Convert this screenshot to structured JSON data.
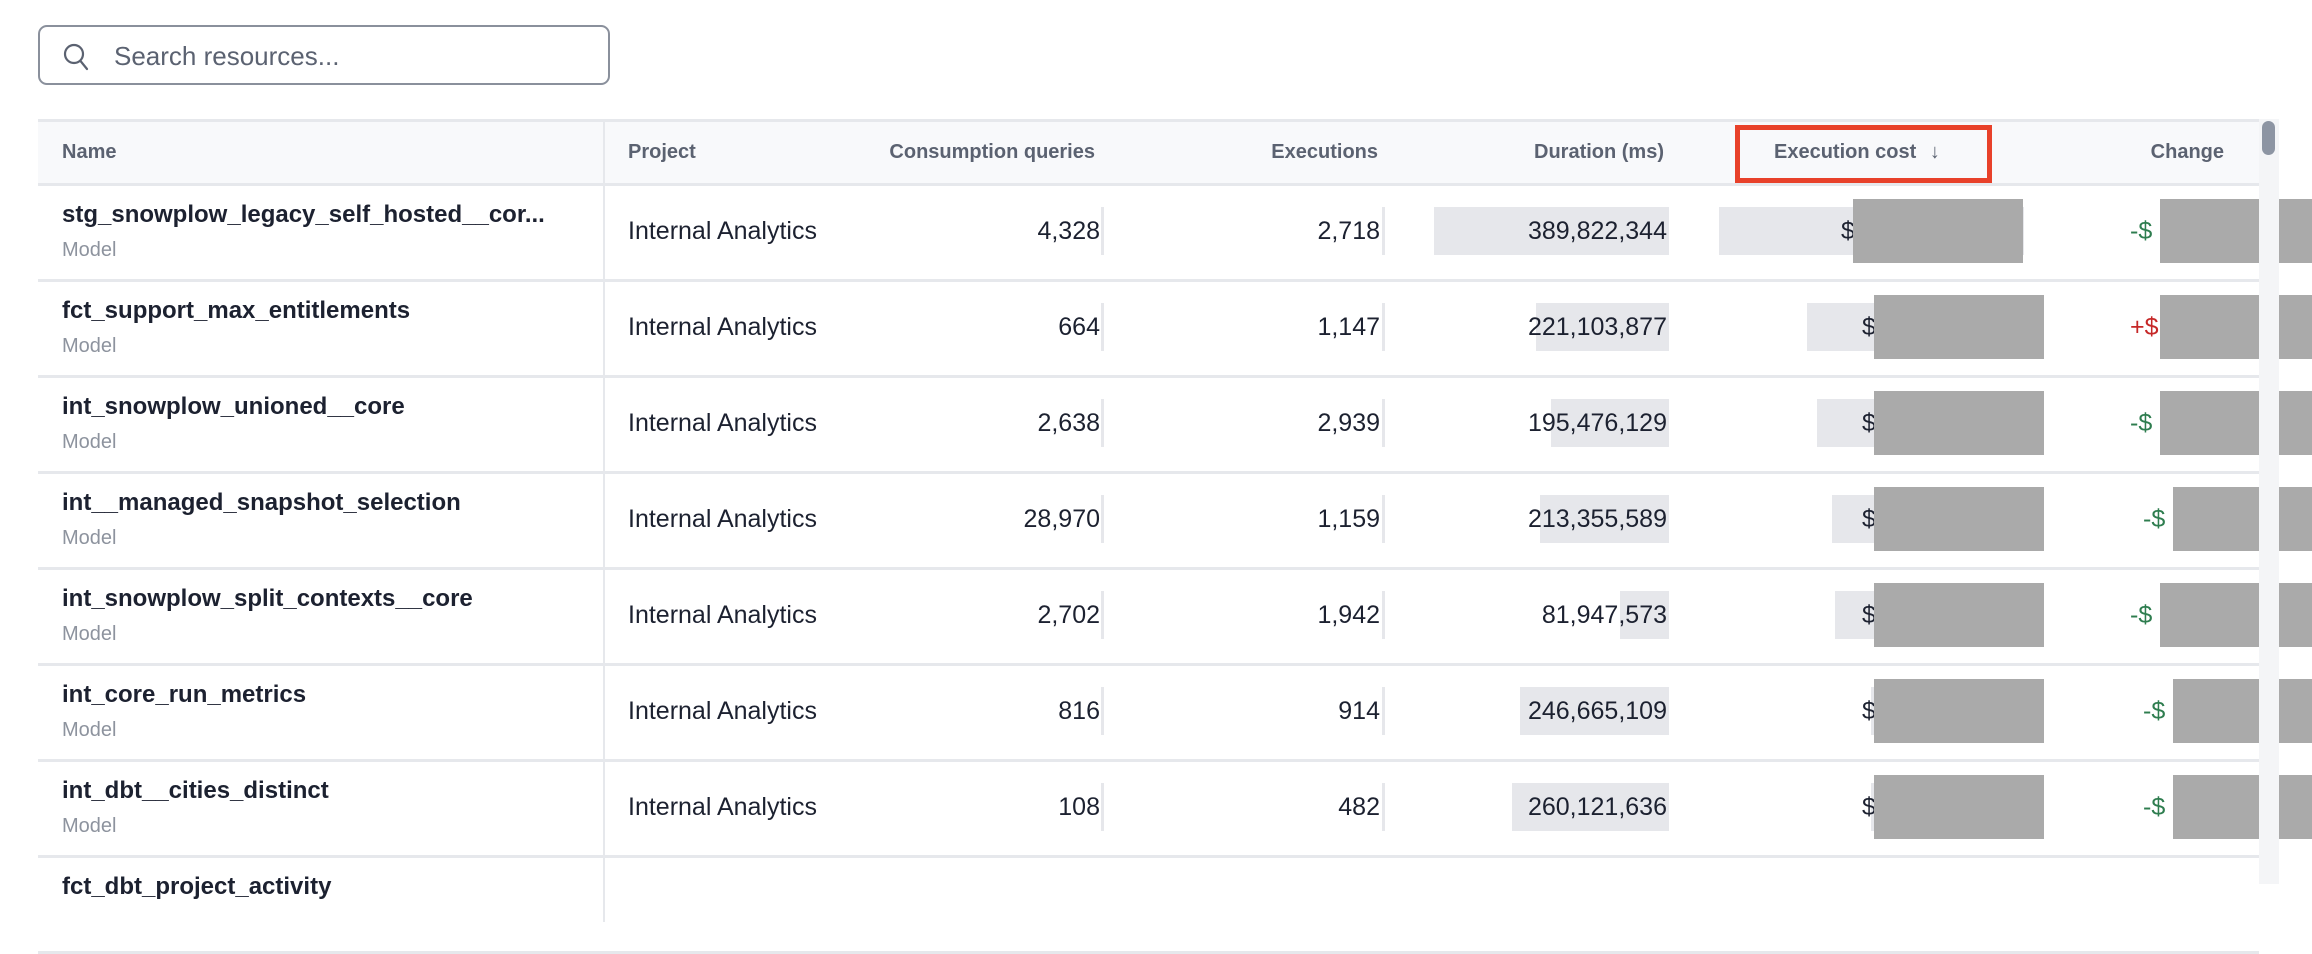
{
  "search": {
    "placeholder": "Search resources...",
    "value": "",
    "icon": "search-icon"
  },
  "table": {
    "columns": [
      "Name",
      "Project",
      "Consumption queries",
      "Executions",
      "Duration (ms)",
      "Execution cost",
      "Change"
    ],
    "sort": {
      "column": "Execution cost",
      "direction": "descending",
      "indicator": "↓"
    },
    "highlight_color": "#e8412a",
    "positive_change_color": "#2e7d4f",
    "negative_change_color": "#c62828",
    "rows": [
      {
        "name": "stg_snowplow_legacy_self_hosted__cor...",
        "type": "Model",
        "project": "Internal Analytics",
        "consumption_queries": "4,328",
        "executions": "2,718",
        "duration_ms": "389,822,344",
        "duration_value": 389822344,
        "cost_prefix": "$",
        "cost_fill": 1.0,
        "change_prefix": "-$"
      },
      {
        "name": "fct_support_max_entitlements",
        "type": "Model",
        "project": "Internal Analytics",
        "consumption_queries": "664",
        "executions": "1,147",
        "duration_ms": "221,103,877",
        "duration_value": 221103877,
        "cost_prefix": "$",
        "cost_fill": 0.71,
        "change_prefix": "+$"
      },
      {
        "name": "int_snowplow_unioned__core",
        "type": "Model",
        "project": "Internal Analytics",
        "consumption_queries": "2,638",
        "executions": "2,939",
        "duration_ms": "195,476,129",
        "duration_value": 195476129,
        "cost_prefix": "$",
        "cost_fill": 0.68,
        "change_prefix": "-$"
      },
      {
        "name": "int__managed_snapshot_selection",
        "type": "Model",
        "project": "Internal Analytics",
        "consumption_queries": "28,970",
        "executions": "1,159",
        "duration_ms": "213,355,589",
        "duration_value": 213355589,
        "cost_prefix": "$",
        "cost_fill": 0.63,
        "change_prefix": "-$"
      },
      {
        "name": "int_snowplow_split_contexts__core",
        "type": "Model",
        "project": "Internal Analytics",
        "consumption_queries": "2,702",
        "executions": "1,942",
        "duration_ms": "81,947,573",
        "duration_value": 81947573,
        "cost_prefix": "$",
        "cost_fill": 0.62,
        "change_prefix": "-$"
      },
      {
        "name": "int_core_run_metrics",
        "type": "Model",
        "project": "Internal Analytics",
        "consumption_queries": "816",
        "executions": "914",
        "duration_ms": "246,665,109",
        "duration_value": 246665109,
        "cost_prefix": "$",
        "cost_fill": 0.5,
        "change_prefix": "-$"
      },
      {
        "name": "int_dbt__cities_distinct",
        "type": "Model",
        "project": "Internal Analytics",
        "consumption_queries": "108",
        "executions": "482",
        "duration_ms": "260,121,636",
        "duration_value": 260121636,
        "cost_prefix": "$",
        "cost_fill": 0.5,
        "change_prefix": "-$"
      },
      {
        "name": "fct_dbt_project_activity",
        "type": "",
        "project": "",
        "consumption_queries": "",
        "executions": "",
        "duration_ms": "",
        "duration_value": 0,
        "cost_prefix": "",
        "cost_fill": 0,
        "change_prefix": ""
      }
    ]
  }
}
